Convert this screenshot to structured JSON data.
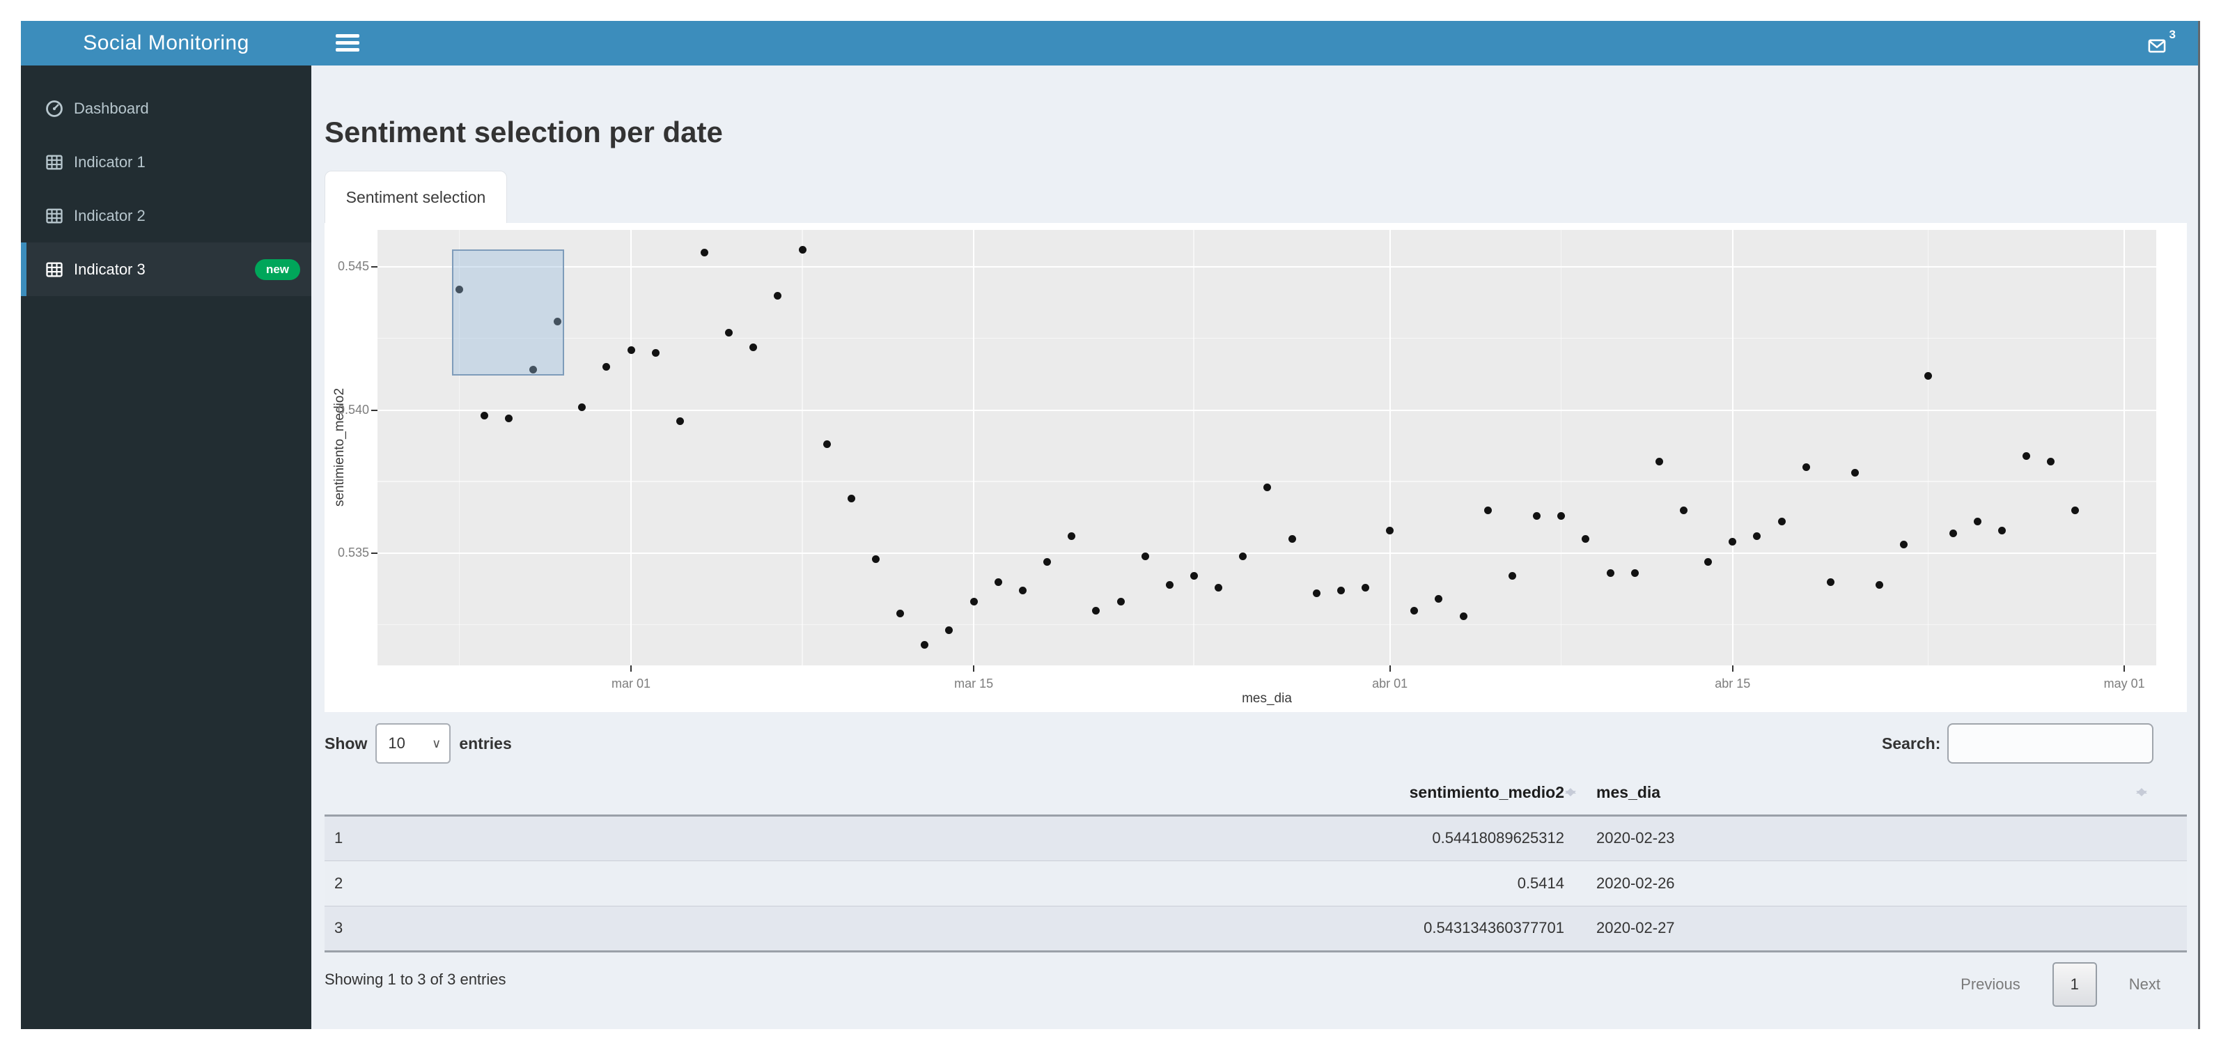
{
  "header": {
    "logo": "Social Monitoring",
    "messages_badge": "3"
  },
  "sidebar": {
    "items": [
      {
        "label": "Dashboard",
        "icon": "dashboard-icon",
        "active": false,
        "badge": ""
      },
      {
        "label": "Indicator 1",
        "icon": "table-icon",
        "active": false,
        "badge": ""
      },
      {
        "label": "Indicator 2",
        "icon": "table-icon",
        "active": false,
        "badge": ""
      },
      {
        "label": "Indicator 3",
        "icon": "table-icon",
        "active": true,
        "badge": "new"
      }
    ]
  },
  "main": {
    "title": "Sentiment selection per date",
    "tab_label": "Sentiment selection"
  },
  "colors": {
    "accent": "#3c8dbc",
    "sidebar_bg": "#222d32",
    "badge_green": "#00a65a",
    "content_bg": "#ecf0f5",
    "plot_panel": "#ebebeb",
    "point": "#121212"
  },
  "chart_data": {
    "type": "scatter",
    "title": "",
    "xlabel": "mes_dia",
    "ylabel": "sentimiento_medio2",
    "x_tick_labels": [
      "mar 01",
      "mar 15",
      "abr 01",
      "abr 15",
      "may 01"
    ],
    "x_tick_dates": [
      "2020-03-01",
      "2020-03-15",
      "2020-04-01",
      "2020-04-15",
      "2020-05-01"
    ],
    "x_minor_dates": [
      "2020-02-23",
      "2020-03-08",
      "2020-03-24",
      "2020-04-08",
      "2020-04-23"
    ],
    "y_ticks": [
      0.545,
      0.54,
      0.535
    ],
    "y_minor_ticks": [
      0.5425,
      0.5375,
      0.5325
    ],
    "ylim": [
      0.5311,
      0.5463
    ],
    "grid": true,
    "legend": false,
    "brush_selection": {
      "x0_days_from_mar01": -7.31,
      "x1_days_from_mar01": -2.73,
      "y_min": 0.5412,
      "y_max": 0.5456
    },
    "points": [
      [
        "2020-02-23",
        0.5442
      ],
      [
        "2020-02-24",
        0.5398
      ],
      [
        "2020-02-25",
        0.5397
      ],
      [
        "2020-02-26",
        0.5414
      ],
      [
        "2020-02-27",
        0.5431
      ],
      [
        "2020-02-28",
        0.5401
      ],
      [
        "2020-02-29",
        0.5415
      ],
      [
        "2020-03-01",
        0.5421
      ],
      [
        "2020-03-02",
        0.542
      ],
      [
        "2020-03-03",
        0.5396
      ],
      [
        "2020-03-04",
        0.5455
      ],
      [
        "2020-03-05",
        0.5427
      ],
      [
        "2020-03-06",
        0.5422
      ],
      [
        "2020-03-07",
        0.544
      ],
      [
        "2020-03-08",
        0.5456
      ],
      [
        "2020-03-09",
        0.5388
      ],
      [
        "2020-03-10",
        0.5369
      ],
      [
        "2020-03-11",
        0.5348
      ],
      [
        "2020-03-12",
        0.5329
      ],
      [
        "2020-03-13",
        0.5318
      ],
      [
        "2020-03-14",
        0.5323
      ],
      [
        "2020-03-15",
        0.5333
      ],
      [
        "2020-03-16",
        0.534
      ],
      [
        "2020-03-17",
        0.5337
      ],
      [
        "2020-03-18",
        0.5347
      ],
      [
        "2020-03-19",
        0.5356
      ],
      [
        "2020-03-20",
        0.533
      ],
      [
        "2020-03-21",
        0.5333
      ],
      [
        "2020-03-22",
        0.5349
      ],
      [
        "2020-03-23",
        0.5339
      ],
      [
        "2020-03-24",
        0.5342
      ],
      [
        "2020-03-25",
        0.5338
      ],
      [
        "2020-03-26",
        0.5349
      ],
      [
        "2020-03-27",
        0.5373
      ],
      [
        "2020-03-28",
        0.5355
      ],
      [
        "2020-03-29",
        0.5336
      ],
      [
        "2020-03-30",
        0.5337
      ],
      [
        "2020-03-31",
        0.5338
      ],
      [
        "2020-04-01",
        0.5358
      ],
      [
        "2020-04-02",
        0.533
      ],
      [
        "2020-04-03",
        0.5334
      ],
      [
        "2020-04-04",
        0.5328
      ],
      [
        "2020-04-05",
        0.5365
      ],
      [
        "2020-04-06",
        0.5342
      ],
      [
        "2020-04-07",
        0.5363
      ],
      [
        "2020-04-08",
        0.5363
      ],
      [
        "2020-04-09",
        0.5355
      ],
      [
        "2020-04-10",
        0.5343
      ],
      [
        "2020-04-11",
        0.5343
      ],
      [
        "2020-04-12",
        0.5382
      ],
      [
        "2020-04-13",
        0.5365
      ],
      [
        "2020-04-14",
        0.5347
      ],
      [
        "2020-04-15",
        0.5354
      ],
      [
        "2020-04-16",
        0.5356
      ],
      [
        "2020-04-17",
        0.5361
      ],
      [
        "2020-04-18",
        0.538
      ],
      [
        "2020-04-19",
        0.534
      ],
      [
        "2020-04-20",
        0.5378
      ],
      [
        "2020-04-21",
        0.5339
      ],
      [
        "2020-04-22",
        0.5353
      ],
      [
        "2020-04-23",
        0.5412
      ],
      [
        "2020-04-24",
        0.5357
      ],
      [
        "2020-04-25",
        0.5361
      ],
      [
        "2020-04-26",
        0.5358
      ],
      [
        "2020-04-27",
        0.5384
      ],
      [
        "2020-04-28",
        0.5382
      ],
      [
        "2020-04-29",
        0.5365
      ]
    ]
  },
  "table": {
    "length_prefix": "Show",
    "length_value": "10",
    "length_suffix": "entries",
    "search_label": "Search:",
    "search_value": "",
    "columns": [
      "",
      "sentimiento_medio2",
      "mes_dia"
    ],
    "rows": [
      {
        "name": "1",
        "sentimiento_medio2": "0.54418089625312",
        "mes_dia": "2020-02-23"
      },
      {
        "name": "2",
        "sentimiento_medio2": "0.5414",
        "mes_dia": "2020-02-26"
      },
      {
        "name": "3",
        "sentimiento_medio2": "0.543134360377701",
        "mes_dia": "2020-02-27"
      }
    ],
    "info": "Showing 1 to 3 of 3 entries",
    "pagination": {
      "previous": "Previous",
      "current_page": "1",
      "next": "Next"
    }
  }
}
